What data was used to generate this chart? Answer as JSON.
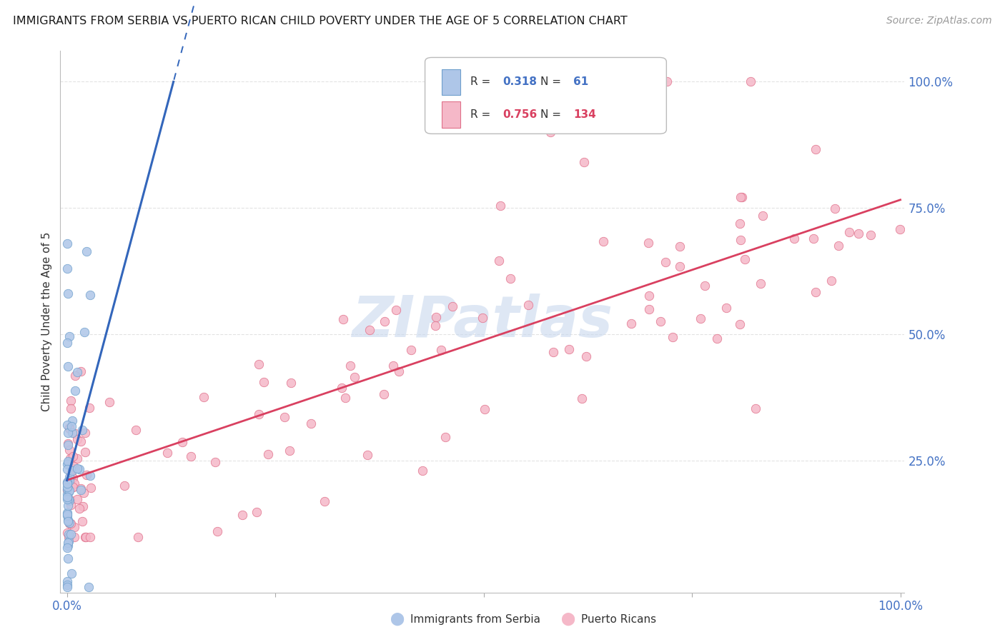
{
  "title": "IMMIGRANTS FROM SERBIA VS PUERTO RICAN CHILD POVERTY UNDER THE AGE OF 5 CORRELATION CHART",
  "source": "Source: ZipAtlas.com",
  "ylabel": "Child Poverty Under the Age of 5",
  "ytick_labels": [
    "25.0%",
    "50.0%",
    "75.0%",
    "100.0%"
  ],
  "ytick_positions": [
    0.25,
    0.5,
    0.75,
    1.0
  ],
  "xtick_left_label": "0.0%",
  "xtick_right_label": "100.0%",
  "title_color": "#1a1a1a",
  "source_color": "#999999",
  "ylabel_color": "#333333",
  "ytick_color": "#4472c4",
  "xtick_color": "#4472c4",
  "grid_color": "#dddddd",
  "background_color": "#ffffff",
  "serbia_color": "#aec6e8",
  "serbia_edge_color": "#6fa0cc",
  "puerto_rico_color": "#f5b8c8",
  "puerto_rico_edge_color": "#e0708a",
  "serbia_line_color": "#3366bb",
  "puerto_rico_line_color": "#d94060",
  "legend_serbia_R": "0.318",
  "legend_serbia_N": "61",
  "legend_pr_R": "0.756",
  "legend_pr_N": "134",
  "legend_serbia_R_color": "#4472c4",
  "legend_serbia_N_color": "#4472c4",
  "legend_pr_R_color": "#d94060",
  "legend_pr_N_color": "#d94060",
  "watermark": "ZIPatlas",
  "watermark_color": "#c8d8ee",
  "marker_size": 80,
  "marker_alpha": 0.85
}
